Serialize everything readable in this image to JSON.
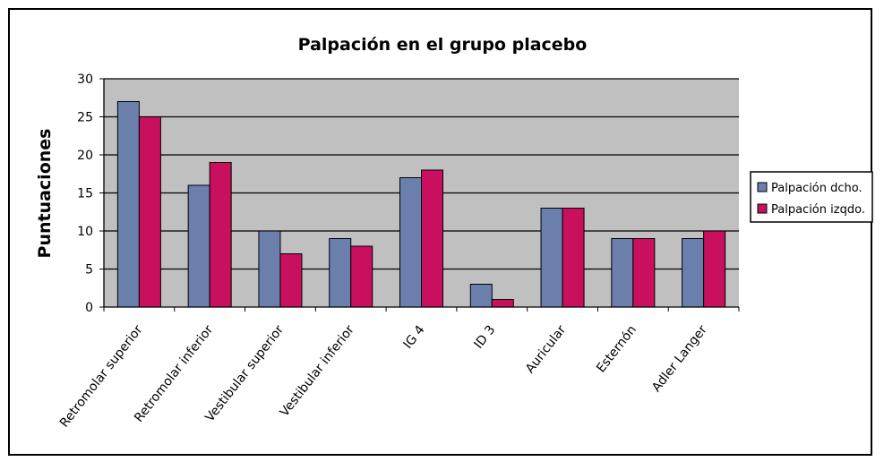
{
  "chart_data": {
    "type": "bar",
    "title": "Palpación en el grupo placebo",
    "xlabel": "",
    "ylabel": "Puntuaciones",
    "ylim": [
      0,
      30
    ],
    "yticks": [
      0,
      5,
      10,
      15,
      20,
      25,
      30
    ],
    "grid": true,
    "legend_position": "right",
    "categories": [
      "Retromolar superior",
      "Retromolar inferior",
      "Vestibular superior",
      "Vestibular inferior",
      "IG 4",
      "ID 3",
      "Auricular",
      "Esternón",
      "Adler Langer"
    ],
    "series": [
      {
        "name": "Palpación dcho.",
        "color": "#6b7fac",
        "values": [
          27,
          16,
          10,
          9,
          17,
          3,
          13,
          9,
          9
        ]
      },
      {
        "name": "Palpación izqdo.",
        "color": "#c8105e",
        "values": [
          25,
          19,
          7,
          8,
          18,
          1,
          13,
          9,
          10
        ]
      }
    ],
    "plot_background": "#c0c0c0"
  }
}
